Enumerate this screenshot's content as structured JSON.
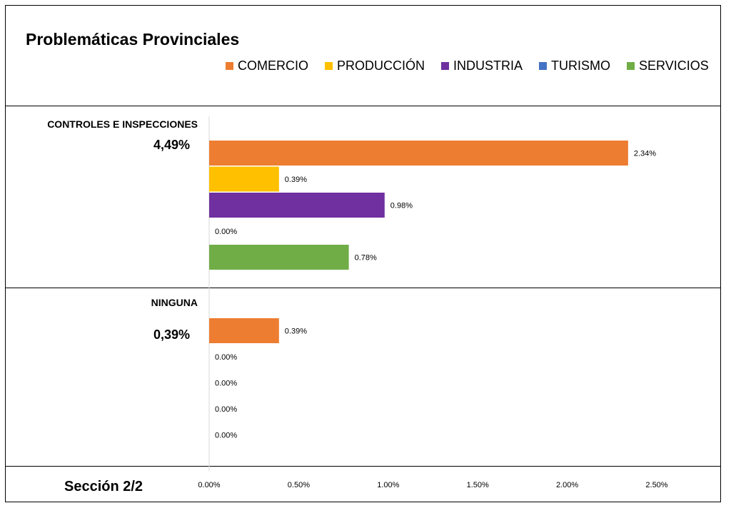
{
  "title": "Problemáticas Provinciales",
  "footer": "Sección 2/2",
  "chart_data": {
    "type": "bar",
    "orientation": "horizontal",
    "title": "Problemáticas Provinciales",
    "xlim": [
      0,
      2.5
    ],
    "x_ticks": [
      "0.00%",
      "0.50%",
      "1.00%",
      "1.50%",
      "2.00%",
      "2.50%"
    ],
    "series": [
      {
        "name": "COMERCIO",
        "color": "#ED7D31"
      },
      {
        "name": "PRODUCCIÓN",
        "color": "#FFC000"
      },
      {
        "name": "INDUSTRIA",
        "color": "#7030A0"
      },
      {
        "name": "TURISMO",
        "color": "#4472C4"
      },
      {
        "name": "SERVICIOS",
        "color": "#70AD47"
      }
    ],
    "categories": [
      {
        "name": "CONTROLES E INSPECCIONES",
        "total": "4,49%",
        "values": [
          2.34,
          0.39,
          0.98,
          0.0,
          0.78
        ],
        "labels": [
          "2.34%",
          "0.39%",
          "0.98%",
          "0.00%",
          "0.78%"
        ]
      },
      {
        "name": "NINGUNA",
        "total": "0,39%",
        "values": [
          0.39,
          0.0,
          0.0,
          0.0,
          0.0
        ],
        "labels": [
          "0.39%",
          "0.00%",
          "0.00%",
          "0.00%",
          "0.00%"
        ]
      }
    ]
  }
}
